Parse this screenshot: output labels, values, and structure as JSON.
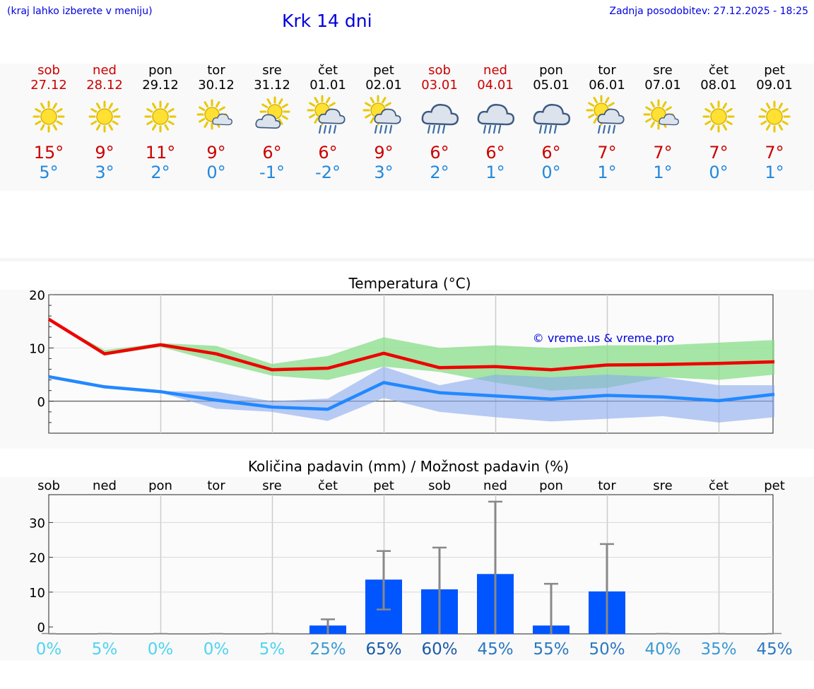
{
  "header": {
    "hint": "(kraj lahko izberete v meniju)",
    "title": "Krk 14 dni",
    "updated": "Zadnja posodobitev: 27.12.2025 - 18:25"
  },
  "colors": {
    "weekend": "#cc0000",
    "max": "#cc0000",
    "min": "#2288dd",
    "link": "#0000dd",
    "bar": "#0055ff"
  },
  "days": [
    {
      "name": "sob",
      "date": "27.12",
      "weekend": true,
      "icon": "sun-icon",
      "max": "15°",
      "min": "5°"
    },
    {
      "name": "ned",
      "date": "28.12",
      "weekend": true,
      "icon": "sun-icon",
      "max": "9°",
      "min": "3°"
    },
    {
      "name": "pon",
      "date": "29.12",
      "weekend": false,
      "icon": "sun-icon",
      "max": "11°",
      "min": "2°"
    },
    {
      "name": "tor",
      "date": "30.12",
      "weekend": false,
      "icon": "sun-small-cloud-icon",
      "max": "9°",
      "min": "0°"
    },
    {
      "name": "sre",
      "date": "31.12",
      "weekend": false,
      "icon": "sun-cloud-icon",
      "max": "6°",
      "min": "-1°"
    },
    {
      "name": "čet",
      "date": "01.01",
      "weekend": false,
      "icon": "sun-cloud-rain-icon",
      "max": "6°",
      "min": "-2°"
    },
    {
      "name": "pet",
      "date": "02.01",
      "weekend": false,
      "icon": "sun-cloud-rain-icon",
      "max": "9°",
      "min": "3°"
    },
    {
      "name": "sob",
      "date": "03.01",
      "weekend": true,
      "icon": "cloud-rain-icon",
      "max": "6°",
      "min": "2°"
    },
    {
      "name": "ned",
      "date": "04.01",
      "weekend": true,
      "icon": "cloud-rain-icon",
      "max": "6°",
      "min": "1°"
    },
    {
      "name": "pon",
      "date": "05.01",
      "weekend": false,
      "icon": "cloud-rain-icon",
      "max": "6°",
      "min": "0°"
    },
    {
      "name": "tor",
      "date": "06.01",
      "weekend": false,
      "icon": "sun-cloud-rain-icon",
      "max": "7°",
      "min": "1°"
    },
    {
      "name": "sre",
      "date": "07.01",
      "weekend": false,
      "icon": "sun-small-cloud-icon",
      "max": "7°",
      "min": "1°"
    },
    {
      "name": "čet",
      "date": "08.01",
      "weekend": false,
      "icon": "sun-icon",
      "max": "7°",
      "min": "0°"
    },
    {
      "name": "pet",
      "date": "09.01",
      "weekend": false,
      "icon": "sun-icon",
      "max": "7°",
      "min": "1°"
    }
  ],
  "chart_data": [
    {
      "type": "line",
      "title": "Temperatura (°C)",
      "watermark": "© vreme.us & vreme.pro",
      "ylim": [
        -6,
        20
      ],
      "yticks": [
        "20",
        "10",
        "0"
      ],
      "ytick_values": [
        20,
        10,
        0
      ],
      "x": [
        0,
        1,
        2,
        3,
        4,
        5,
        6,
        7,
        8,
        9,
        10,
        11,
        12,
        13
      ],
      "series": [
        {
          "name": "max",
          "color": "#ee0000",
          "values": [
            15.4,
            8.9,
            10.6,
            8.9,
            5.9,
            6.2,
            9.0,
            6.3,
            6.5,
            5.9,
            6.8,
            6.9,
            7.1,
            7.4
          ]
        },
        {
          "name": "min",
          "color": "#2288ff",
          "values": [
            4.6,
            2.7,
            1.8,
            0.2,
            -1.1,
            -1.5,
            3.5,
            1.6,
            1.0,
            0.4,
            1.1,
            0.8,
            0.1,
            1.3
          ]
        }
      ],
      "bands": [
        {
          "name": "max-range",
          "color": "#88dd88",
          "upper": [
            15.4,
            9.6,
            10.9,
            10.4,
            7.0,
            8.5,
            12.0,
            10.0,
            10.5,
            10.0,
            10.5,
            10.5,
            11.0,
            11.5
          ],
          "lower": [
            15.4,
            8.6,
            10.2,
            7.4,
            4.8,
            4.0,
            6.5,
            5.5,
            3.5,
            2.0,
            2.5,
            4.5,
            4.0,
            5.0
          ]
        },
        {
          "name": "min-range",
          "color": "#88aaee",
          "upper": [
            4.6,
            3.0,
            1.9,
            1.8,
            0.0,
            0.5,
            6.5,
            3.0,
            5.0,
            4.5,
            5.0,
            4.5,
            3.0,
            3.0
          ],
          "lower": [
            4.6,
            2.4,
            1.6,
            -1.4,
            -2.0,
            -3.7,
            0.6,
            -2.0,
            -3.0,
            -3.8,
            -3.3,
            -2.8,
            -4.0,
            -3.0
          ]
        }
      ]
    },
    {
      "type": "bar",
      "title": "Količina padavin (mm) / Možnost padavin (%)",
      "categories": [
        "sob",
        "ned",
        "pon",
        "tor",
        "sre",
        "čet",
        "pet",
        "sob",
        "ned",
        "pon",
        "tor",
        "sre",
        "čet",
        "pet"
      ],
      "ylim": [
        -2,
        38
      ],
      "yticks": [
        "30",
        "20",
        "10",
        "0"
      ],
      "ytick_values": [
        30,
        20,
        10,
        0
      ],
      "values": [
        0,
        0,
        0,
        0,
        0,
        0.4,
        13.6,
        10.8,
        15.2,
        0.4,
        10.2,
        0,
        0,
        0
      ],
      "error_low": [
        0,
        0,
        0,
        0,
        0,
        0,
        5,
        0,
        0,
        0,
        0,
        0,
        0,
        0
      ],
      "error_high": [
        0,
        0,
        0,
        0,
        0,
        2.2,
        21.8,
        22.8,
        36,
        12.4,
        23.8,
        0,
        0,
        0
      ],
      "probability": [
        "0%",
        "5%",
        "0%",
        "0%",
        "5%",
        "25%",
        "65%",
        "60%",
        "45%",
        "55%",
        "50%",
        "40%",
        "35%",
        "45%"
      ],
      "probability_values": [
        0,
        5,
        0,
        0,
        5,
        25,
        65,
        60,
        45,
        55,
        50,
        40,
        35,
        45
      ]
    }
  ]
}
